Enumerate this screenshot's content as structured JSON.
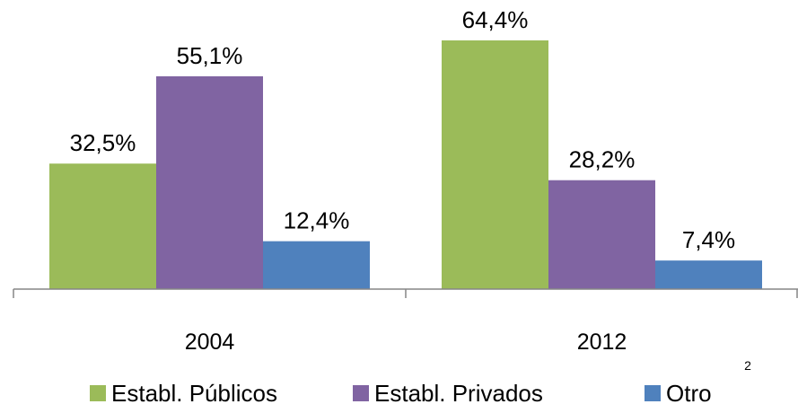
{
  "chart_data": {
    "type": "bar",
    "categories": [
      "2004",
      "2012"
    ],
    "series": [
      {
        "name": "Establ. Públicos",
        "color": "#9bbb59",
        "values": [
          32.5,
          64.4
        ],
        "value_labels": [
          "32,5%",
          "64,4%"
        ]
      },
      {
        "name": "Establ. Privados",
        "color": "#8064a2",
        "values": [
          55.1,
          28.2
        ],
        "value_labels": [
          "55,1%",
          "28,2%"
        ]
      },
      {
        "name": "Otro",
        "color": "#4f81bd",
        "values": [
          12.4,
          7.4
        ],
        "value_labels": [
          "12,4%",
          "7,4%"
        ]
      }
    ],
    "legend": "bottom",
    "annotation": "2"
  }
}
